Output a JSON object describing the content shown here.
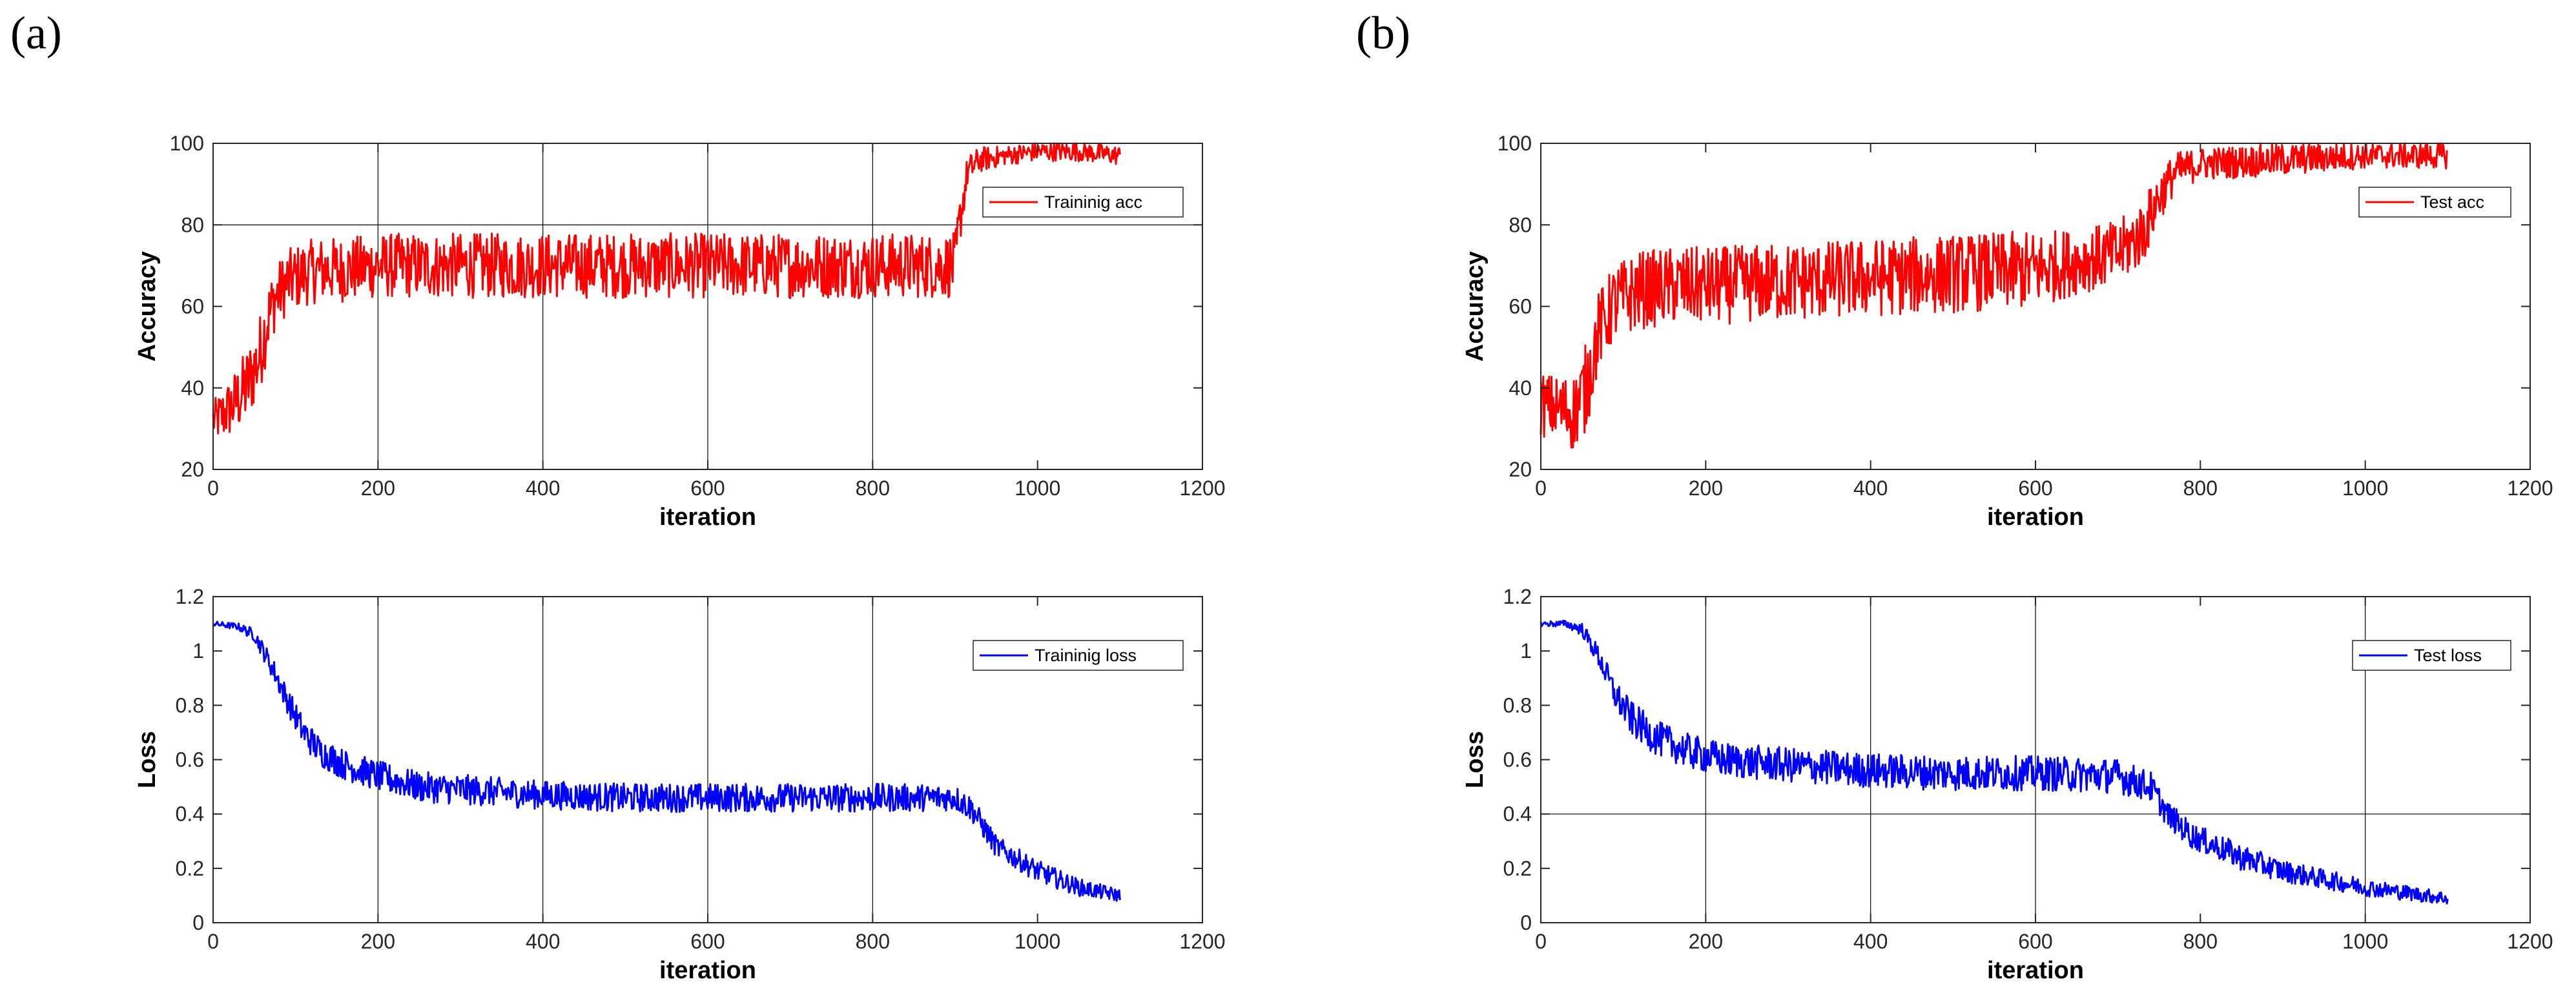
{
  "panels": {
    "a": "(a)",
    "b": "(b)"
  },
  "colors": {
    "accuracy": "#ff0000",
    "loss": "#0000ff",
    "axis": "#262626",
    "grid": "#000000"
  },
  "chart_data": [
    {
      "id": "a-acc",
      "panel": "(a)",
      "type": "line",
      "xlabel": "iteration",
      "ylabel": "Accuracy",
      "xlim": [
        0,
        1200
      ],
      "ylim": [
        20,
        100
      ],
      "xticks": [
        0,
        200,
        400,
        600,
        800,
        1000,
        1200
      ],
      "yticks": [
        20,
        40,
        60,
        80,
        100
      ],
      "legend_location": "top-right",
      "series": [
        {
          "name": "Traininig acc",
          "color": "#ff0000",
          "x": [
            0,
            10,
            25,
            40,
            55,
            65,
            75,
            90,
            110,
            130,
            160,
            200,
            260,
            330,
            400,
            500,
            600,
            700,
            800,
            880,
            900,
            905,
            915,
            930,
            960,
            1000,
            1050,
            1100
          ],
          "y": [
            32,
            33,
            36,
            40,
            47,
            56,
            62,
            66,
            68,
            69,
            69,
            70,
            70,
            70,
            70,
            70,
            70,
            70,
            70,
            70,
            70,
            80,
            93,
            96,
            97,
            98,
            98,
            97
          ],
          "noise": [
            3,
            4,
            5,
            6,
            6,
            6,
            5,
            5,
            5,
            5,
            5,
            5,
            5,
            5,
            5,
            5,
            5,
            5,
            5,
            5,
            5,
            4,
            2.5,
            2,
            1.5,
            1.5,
            1.5,
            1.5
          ]
        }
      ],
      "grid": {
        "x": [
          200,
          400,
          600,
          800
        ],
        "y": [
          80
        ]
      }
    },
    {
      "id": "a-loss",
      "panel": "(a)",
      "type": "line",
      "xlabel": "iteration",
      "ylabel": "Loss",
      "xlim": [
        0,
        1200
      ],
      "ylim": [
        0,
        1.2
      ],
      "xticks": [
        0,
        200,
        400,
        600,
        800,
        1000,
        1200
      ],
      "yticks": [
        0,
        0.2,
        0.4,
        0.6,
        0.8,
        1,
        1.2
      ],
      "legend_location": "top-right",
      "series": [
        {
          "name": "Traininig loss",
          "color": "#0000ff",
          "x": [
            0,
            30,
            50,
            70,
            90,
            110,
            130,
            160,
            200,
            250,
            300,
            400,
            500,
            600,
            700,
            800,
            900,
            920,
            950,
            1000,
            1050,
            1100
          ],
          "y": [
            1.1,
            1.09,
            1.06,
            0.95,
            0.82,
            0.7,
            0.63,
            0.58,
            0.54,
            0.5,
            0.49,
            0.47,
            0.46,
            0.46,
            0.46,
            0.46,
            0.46,
            0.42,
            0.28,
            0.19,
            0.13,
            0.1
          ],
          "noise": [
            0.006,
            0.008,
            0.015,
            0.025,
            0.03,
            0.035,
            0.035,
            0.035,
            0.035,
            0.035,
            0.035,
            0.033,
            0.033,
            0.033,
            0.033,
            0.033,
            0.03,
            0.03,
            0.025,
            0.025,
            0.02,
            0.015
          ]
        }
      ],
      "grid": {
        "x": [
          200,
          400,
          600,
          800
        ],
        "y": []
      }
    },
    {
      "id": "b-acc",
      "panel": "(b)",
      "type": "line",
      "xlabel": "iteration",
      "ylabel": "Accuracy",
      "xlim": [
        0,
        1200
      ],
      "ylim": [
        20,
        100
      ],
      "xticks": [
        0,
        200,
        400,
        600,
        800,
        1000,
        1200
      ],
      "yticks": [
        20,
        40,
        60,
        80,
        100
      ],
      "legend_location": "top-right",
      "series": [
        {
          "name": "Test acc",
          "color": "#ff0000",
          "x": [
            0,
            20,
            40,
            55,
            70,
            90,
            120,
            160,
            200,
            300,
            400,
            500,
            600,
            650,
            700,
            730,
            750,
            770,
            800,
            900,
            1000,
            1100
          ],
          "y": [
            36,
            35,
            34,
            40,
            54,
            61,
            64,
            65,
            65,
            66,
            67,
            68,
            69,
            71,
            73,
            78,
            87,
            93,
            95,
            96,
            97,
            97
          ],
          "noise": [
            5,
            5,
            6,
            7,
            6,
            6,
            6,
            6,
            6,
            6,
            6,
            6,
            6,
            5,
            5,
            5,
            4,
            3,
            2.5,
            2.5,
            2,
            2
          ]
        }
      ],
      "grid": {
        "x": [],
        "y": []
      }
    },
    {
      "id": "b-loss",
      "panel": "(b)",
      "type": "line",
      "xlabel": "iteration",
      "ylabel": "Loss",
      "xlim": [
        0,
        1200
      ],
      "ylim": [
        0,
        1.2
      ],
      "xticks": [
        0,
        200,
        400,
        600,
        800,
        1000,
        1200
      ],
      "yticks": [
        0,
        0.2,
        0.4,
        0.6,
        0.8,
        1,
        1.2
      ],
      "legend_location": "top-right",
      "series": [
        {
          "name": "Test loss",
          "color": "#0000ff",
          "x": [
            0,
            30,
            50,
            70,
            90,
            110,
            140,
            180,
            220,
            300,
            400,
            500,
            600,
            700,
            740,
            760,
            790,
            850,
            900,
            1000,
            1100
          ],
          "y": [
            1.1,
            1.1,
            1.08,
            0.98,
            0.84,
            0.75,
            0.68,
            0.63,
            0.6,
            0.58,
            0.56,
            0.55,
            0.55,
            0.54,
            0.5,
            0.4,
            0.32,
            0.24,
            0.19,
            0.13,
            0.09
          ],
          "noise": [
            0.006,
            0.008,
            0.015,
            0.025,
            0.035,
            0.04,
            0.04,
            0.04,
            0.04,
            0.04,
            0.04,
            0.04,
            0.04,
            0.04,
            0.035,
            0.03,
            0.03,
            0.03,
            0.025,
            0.02,
            0.015
          ]
        }
      ],
      "grid": {
        "x": [
          200,
          400,
          600,
          1000
        ],
        "y": [
          0.4
        ]
      }
    }
  ]
}
